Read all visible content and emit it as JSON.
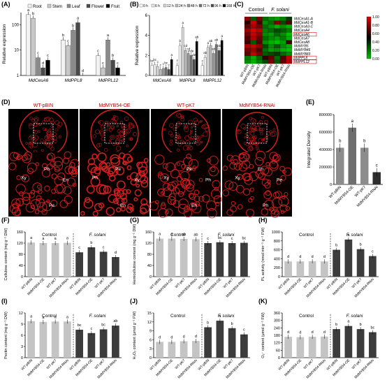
{
  "figure": {
    "panels": {
      "A": "(A)",
      "B": "(B)",
      "C": "(C)",
      "D": "(D)",
      "E": "(E)",
      "F": "(F)",
      "G": "(G)",
      "H": "(H)",
      "I": "(I)",
      "J": "(J)",
      "K": "(K)"
    }
  },
  "chart_data": [
    {
      "id": "A",
      "type": "bar",
      "ylabel": "Relative expression",
      "ylim": [
        0,
        300
      ],
      "yticks": [
        1,
        10,
        100
      ],
      "yscale": "log",
      "legend": [
        "Root",
        "Stem",
        "Leaf",
        "Flower",
        "Fruit"
      ],
      "legend_colors": [
        "#f2f2f2",
        "#c8c8c8",
        "#8a8a8a",
        "#4a4a4a",
        "#000000"
      ],
      "categories": [
        "MdCesA6",
        "MdPPL8",
        "MdPPL12"
      ],
      "series": [
        {
          "name": "Root",
          "values": [
            250,
            25,
            6
          ],
          "letters": [
            "a",
            "b",
            "c"
          ]
        },
        {
          "name": "Stem",
          "values": [
            180,
            15,
            2
          ],
          "letters": [
            "b",
            "c",
            "c"
          ]
        },
        {
          "name": "Leaf",
          "values": [
            5,
            60,
            25
          ],
          "letters": [
            "c",
            "b",
            "a"
          ]
        },
        {
          "name": "Flower",
          "values": [
            2,
            120,
            4
          ],
          "letters": [
            "d",
            "a",
            "b"
          ]
        },
        {
          "name": "Fruit",
          "values": [
            4,
            1,
            2
          ],
          "letters": [
            "c",
            "d",
            "c"
          ]
        }
      ]
    },
    {
      "id": "B",
      "type": "bar",
      "ylabel": "Relative expression",
      "ylim": [
        0,
        6
      ],
      "yticks": [
        0,
        2,
        4,
        6
      ],
      "legend": [
        "0 h",
        "6 h",
        "12 h",
        "24 h",
        "48 h",
        "72 h",
        "96 h",
        "168 h"
      ],
      "legend_colors": [
        "#ffffff",
        "#ececec",
        "#d4d4d4",
        "#b8b8b8",
        "#969696",
        "#707070",
        "#4a4a4a",
        "#000000"
      ],
      "categories": [
        "MdCesA6",
        "MdPPL8",
        "MdPPL12"
      ],
      "series": [
        {
          "name": "0 h",
          "values": [
            1.0,
            1.0,
            1.0
          ],
          "letters": [
            "bc",
            "f",
            "c"
          ]
        },
        {
          "name": "6 h",
          "values": [
            1.1,
            3.0,
            1.8
          ],
          "letters": [
            "bc",
            "b",
            "ab"
          ]
        },
        {
          "name": "12 h",
          "values": [
            0.9,
            4.8,
            2.8
          ],
          "letters": [
            "c",
            "a",
            "a"
          ]
        },
        {
          "name": "24 h",
          "values": [
            0.6,
            2.5,
            3.0
          ],
          "letters": [
            "c",
            "cd",
            "ab"
          ]
        },
        {
          "name": "48 h",
          "values": [
            0.7,
            2.2,
            2.2
          ],
          "letters": [
            "c",
            "cd",
            "ab"
          ]
        },
        {
          "name": "72 h",
          "values": [
            0.8,
            2.0,
            3.1
          ],
          "letters": [
            "bc",
            "cde",
            "ab"
          ]
        },
        {
          "name": "96 h",
          "values": [
            0.6,
            1.6,
            2.5
          ],
          "letters": [
            "c",
            "de",
            "ab"
          ]
        },
        {
          "name": "168 h",
          "values": [
            1.6,
            3.4,
            3.5
          ],
          "letters": [
            "a",
            "ab",
            "a"
          ]
        }
      ]
    },
    {
      "id": "C",
      "type": "heatmap",
      "groups": [
        "Control",
        "F. solani"
      ],
      "columns": [
        "WT-pBIN",
        "MdMYB54-OE",
        "WT-pK7",
        "MdMYB54-RNAi",
        "WT-pBIN",
        "MdMYB54-OE",
        "WT-pK7",
        "MdMYB54-RNAi"
      ],
      "rows": [
        "MdCesA1-A",
        "MdCesA1-B",
        "MdCesA3-C",
        "MdCesA4",
        "MdCesA6",
        "MdCesA7",
        "MdCesA8",
        "MdMYB5",
        "MdMYB46",
        "MdMYB83",
        "MdPPL8",
        "MdPPL12"
      ],
      "highlighted_rows": [
        "MdCesA6",
        "MdPPL8",
        "MdPPL12"
      ],
      "scale_ticks": [
        1.0,
        0.8,
        0.6,
        0.4,
        0.2,
        0.0
      ],
      "values": [
        [
          0.75,
          0.35,
          0.7,
          0.3,
          0.2,
          0.15,
          0.25,
          0.45
        ],
        [
          0.5,
          0.9,
          0.55,
          0.2,
          0.3,
          0.7,
          0.4,
          0.6
        ],
        [
          0.65,
          0.8,
          0.7,
          0.3,
          0.2,
          0.1,
          0.2,
          0.1
        ],
        [
          0.8,
          0.95,
          0.85,
          0.25,
          0.3,
          0.4,
          0.35,
          0.25
        ],
        [
          0.7,
          0.9,
          0.75,
          0.2,
          0.15,
          0.3,
          0.2,
          0.05
        ],
        [
          0.6,
          0.85,
          0.65,
          0.3,
          0.2,
          0.15,
          0.25,
          0.1
        ],
        [
          0.55,
          0.35,
          0.6,
          0.2,
          0.1,
          0.05,
          0.15,
          0.55
        ],
        [
          0.85,
          0.9,
          0.75,
          0.4,
          0.2,
          0.35,
          0.2,
          0.1
        ],
        [
          0.7,
          0.8,
          0.6,
          0.3,
          0.15,
          0.2,
          0.1,
          0.05
        ],
        [
          0.65,
          0.9,
          0.7,
          0.35,
          0.4,
          0.45,
          0.3,
          0.2
        ],
        [
          0.25,
          0.1,
          0.3,
          0.5,
          0.65,
          0.3,
          0.6,
          0.9
        ],
        [
          0.2,
          0.1,
          0.25,
          0.4,
          0.7,
          0.35,
          0.65,
          0.85
        ]
      ]
    },
    {
      "id": "E",
      "type": "bar",
      "ylabel": "Integrated Density",
      "ylim": [
        0,
        800000
      ],
      "yticks": [
        0,
        200000,
        400000,
        600000,
        800000
      ],
      "categories": [
        "WT-pBIN",
        "MdMYB54-OE",
        "WT-pK7",
        "MdMYB54-RNAi"
      ],
      "values": [
        420000,
        650000,
        420000,
        140000
      ],
      "letters": [
        "b",
        "a",
        "b",
        "c"
      ],
      "colors": [
        "#8c8c8c",
        "#6e6e6e",
        "#8c8c8c",
        "#2e2e2e"
      ]
    },
    {
      "id": "F",
      "type": "bar",
      "ylabel": "Cellulose content (mg g⁻¹ DW)",
      "ylim": [
        0,
        160
      ],
      "yticks": [
        0,
        40,
        80,
        120,
        160
      ],
      "groups": [
        "Control",
        "F. solani"
      ],
      "categories": [
        "WT-pBIN",
        "MdMYB54-OE",
        "WT-pK7",
        "MdMYB54-RNAi"
      ],
      "control": [
        122,
        120,
        120,
        121
      ],
      "control_letters": [
        "a",
        "a",
        "a",
        "a"
      ],
      "treated": [
        87,
        105,
        89,
        70
      ],
      "treated_letters": [
        "c",
        "b",
        "c",
        "d"
      ]
    },
    {
      "id": "G",
      "type": "bar",
      "ylabel": "Hemicellulose content (mg g⁻¹ DW)",
      "ylim": [
        0,
        160
      ],
      "yticks": [
        0,
        40,
        80,
        120,
        160
      ],
      "groups": [
        "Control",
        "F. solani"
      ],
      "categories": [
        "WT-pBIN",
        "MdMYB54-OE",
        "WT-pK7",
        "MdMYB54-RNAi"
      ],
      "control": [
        136,
        136,
        135,
        134
      ],
      "control_letters": [
        "a",
        "a",
        "ab",
        "ab"
      ],
      "treated": [
        120,
        123,
        120,
        121
      ],
      "treated_letters": [
        "c",
        "bc",
        "c",
        "bc"
      ]
    },
    {
      "id": "H",
      "type": "bar",
      "ylabel": "PL activity (nmol min⁻¹ g⁻¹ FW)",
      "ylim": [
        0,
        1000
      ],
      "yticks": [
        0,
        200,
        400,
        600,
        800,
        1000
      ],
      "groups": [
        "Control",
        "F. solani"
      ],
      "categories": [
        "WT-pBIN",
        "MdMYB54-OE",
        "WT-pK7",
        "MdMYB54-RNAi"
      ],
      "control": [
        340,
        340,
        345,
        340
      ],
      "control_letters": [
        "d",
        "d",
        "d",
        "d"
      ],
      "treated": [
        600,
        830,
        615,
        460
      ],
      "treated_letters": [
        "b",
        "a",
        "b",
        "c"
      ]
    },
    {
      "id": "I",
      "type": "bar",
      "ylabel": "Pectin content (mg g⁻¹ DW)",
      "ylim": [
        0,
        12
      ],
      "yticks": [
        0,
        3,
        6,
        9,
        12
      ],
      "groups": [
        "Control",
        "F. solani"
      ],
      "categories": [
        "WT-pBIN",
        "MdMYB54-OE",
        "WT-pK7",
        "MdMYB54-RNAi"
      ],
      "control": [
        9.8,
        9.6,
        9.7,
        9.7
      ],
      "control_letters": [
        "a",
        "a",
        "a",
        "a"
      ],
      "treated": [
        7.5,
        6.6,
        7.6,
        8.6
      ],
      "treated_letters": [
        "bc",
        "c",
        "bc",
        "ab"
      ]
    },
    {
      "id": "J",
      "type": "bar",
      "ylabel": "H₂O₂ content (μmol g⁻¹ FW)",
      "ylim": [
        0,
        15
      ],
      "yticks": [
        0,
        3,
        6,
        9,
        12,
        15
      ],
      "groups": [
        "Control",
        "F. solani"
      ],
      "categories": [
        "WT-pBIN",
        "MdMYB54-OE",
        "WT-pK7",
        "MdMYB54-RNAi"
      ],
      "control": [
        5.3,
        5.3,
        5.5,
        5.6
      ],
      "control_letters": [
        "d",
        "d",
        "d",
        "d"
      ],
      "treated": [
        10.2,
        12.4,
        9.9,
        7.8
      ],
      "treated_letters": [
        "b",
        "a",
        "b",
        "c"
      ]
    },
    {
      "id": "K",
      "type": "bar",
      "ylabel": "O₂⁻ content (μmol g⁻¹ FW)",
      "ylim": [
        0,
        360
      ],
      "yticks": [
        0,
        60,
        120,
        180,
        240,
        300,
        360
      ],
      "groups": [
        "Control",
        "F. solani"
      ],
      "categories": [
        "WT-pBIN",
        "MdMYB54-OE",
        "WT-pK7",
        "MdMYB54-RNAi"
      ],
      "control": [
        168,
        165,
        168,
        170
      ],
      "control_letters": [
        "d",
        "d",
        "d",
        "d"
      ],
      "treated": [
        230,
        255,
        230,
        205
      ],
      "treated_letters": [
        "b",
        "a",
        "b",
        "bc"
      ]
    }
  ],
  "micrographs": {
    "labels": [
      "WT-pBIN",
      "MdMYB54-OE",
      "WT-pK7",
      "MdMYB54-RNAi"
    ],
    "zoom_annotations": [
      [
        "Ph",
        "En",
        "Xy",
        "Pe"
      ],
      [
        "Pe",
        "Xy",
        "Ph",
        "En"
      ],
      [
        "Pe",
        "Ph",
        "Xy",
        "En"
      ],
      [
        "En",
        "Pe",
        "Xy",
        "Ph"
      ]
    ]
  }
}
